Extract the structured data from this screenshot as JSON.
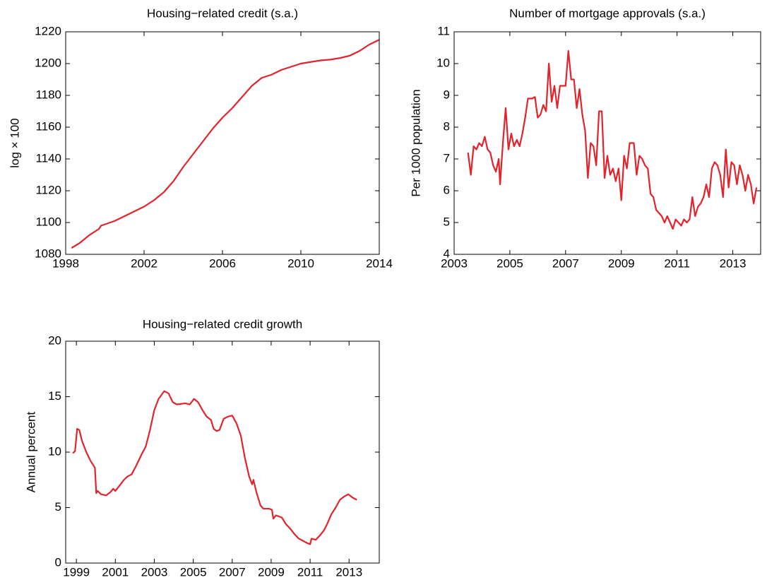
{
  "chart_data": [
    {
      "type": "line",
      "title": "Housing−related credit (s.a.)",
      "ylabel": "log × 100",
      "color": "#e3232c",
      "xlim": [
        1998,
        2014
      ],
      "xticks": [
        1998,
        2002,
        2006,
        2010,
        2014
      ],
      "ylim": [
        1080,
        1220
      ],
      "yticks": [
        1080,
        1100,
        1120,
        1140,
        1160,
        1180,
        1200,
        1220
      ],
      "x": [
        1998.3,
        1998.7,
        1999.2,
        1999.7,
        1999.8,
        2000.5,
        2001,
        2001.5,
        2002,
        2002.5,
        2003,
        2003.5,
        2004,
        2004.5,
        2005,
        2005.5,
        2006,
        2006.5,
        2007,
        2007.5,
        2008,
        2008.5,
        2009,
        2009.5,
        2010,
        2010.5,
        2011,
        2011.5,
        2012,
        2012.5,
        2013,
        2013.5,
        2014
      ],
      "values": [
        1084,
        1087,
        1092,
        1096,
        1098,
        1101,
        1104,
        1107,
        1110,
        1114,
        1119,
        1126,
        1135,
        1143,
        1151,
        1159,
        1166,
        1172,
        1179,
        1186,
        1191,
        1193,
        1196,
        1198,
        1200,
        1201,
        1202,
        1202.5,
        1203.5,
        1205,
        1208,
        1212,
        1215
      ]
    },
    {
      "type": "line",
      "title": "Number of mortgage approvals (s.a.)",
      "ylabel": "Per 1000 population",
      "color": "#e3232c",
      "xlim": [
        2003,
        2014
      ],
      "xticks": [
        2003,
        2005,
        2007,
        2009,
        2011,
        2013
      ],
      "ylim": [
        4,
        11
      ],
      "yticks": [
        4,
        5,
        6,
        7,
        8,
        9,
        10,
        11
      ],
      "x": [
        2003.5,
        2003.6,
        2003.7,
        2003.8,
        2003.9,
        2004.0,
        2004.1,
        2004.2,
        2004.3,
        2004.4,
        2004.5,
        2004.6,
        2004.65,
        2004.75,
        2004.85,
        2004.95,
        2005.05,
        2005.15,
        2005.25,
        2005.35,
        2005.45,
        2005.55,
        2005.65,
        2005.8,
        2005.9,
        2006.0,
        2006.1,
        2006.2,
        2006.3,
        2006.4,
        2006.5,
        2006.6,
        2006.7,
        2006.8,
        2006.9,
        2007.0,
        2007.1,
        2007.2,
        2007.3,
        2007.4,
        2007.5,
        2007.6,
        2007.7,
        2007.8,
        2007.9,
        2008.0,
        2008.1,
        2008.2,
        2008.3,
        2008.4,
        2008.5,
        2008.6,
        2008.7,
        2008.8,
        2008.9,
        2009.0,
        2009.1,
        2009.2,
        2009.3,
        2009.45,
        2009.55,
        2009.65,
        2009.75,
        2009.85,
        2009.95,
        2010.05,
        2010.15,
        2010.25,
        2010.35,
        2010.45,
        2010.55,
        2010.65,
        2010.75,
        2010.85,
        2010.95,
        2011.05,
        2011.15,
        2011.25,
        2011.35,
        2011.45,
        2011.55,
        2011.65,
        2011.75,
        2011.85,
        2011.95,
        2012.05,
        2012.15,
        2012.25,
        2012.35,
        2012.45,
        2012.55,
        2012.65,
        2012.75,
        2012.85,
        2012.95,
        2013.05,
        2013.15,
        2013.25,
        2013.35,
        2013.45,
        2013.55,
        2013.65,
        2013.75,
        2013.85
      ],
      "values": [
        7.2,
        6.5,
        7.4,
        7.3,
        7.5,
        7.4,
        7.7,
        7.3,
        7.2,
        6.8,
        6.6,
        7.0,
        6.2,
        7.5,
        8.6,
        7.3,
        7.8,
        7.4,
        7.6,
        7.4,
        7.8,
        8.3,
        8.9,
        8.9,
        8.95,
        8.3,
        8.4,
        8.7,
        8.5,
        10.0,
        8.8,
        9.3,
        8.6,
        9.3,
        9.3,
        9.3,
        10.4,
        9.5,
        9.5,
        8.6,
        9.2,
        8.4,
        7.9,
        6.4,
        7.5,
        7.4,
        6.8,
        8.5,
        8.5,
        6.4,
        7.1,
        6.5,
        6.7,
        6.3,
        6.7,
        5.7,
        7.1,
        6.7,
        7.5,
        7.5,
        6.5,
        7.1,
        7.0,
        6.8,
        6.7,
        5.9,
        5.8,
        5.4,
        5.3,
        5.2,
        5.0,
        5.2,
        5.0,
        4.8,
        5.1,
        5.0,
        4.9,
        5.1,
        5.0,
        5.1,
        5.8,
        5.2,
        5.5,
        5.6,
        5.8,
        6.2,
        5.8,
        6.7,
        6.9,
        6.8,
        6.5,
        5.8,
        7.3,
        6.1,
        6.9,
        6.8,
        6.2,
        6.8,
        6.5,
        6.0,
        6.5,
        6.2,
        5.6,
        6.1
      ]
    },
    {
      "type": "line",
      "title": "Housing−related credit growth",
      "ylabel": "Annual percent",
      "color": "#e3232c",
      "xlim": [
        1998.45,
        2014.55
      ],
      "xticks": [
        1999,
        2001,
        2003,
        2005,
        2007,
        2009,
        2011,
        2013
      ],
      "ylim": [
        0,
        20
      ],
      "yticks": [
        0,
        5,
        10,
        15,
        20
      ],
      "x": [
        1998.82,
        1998.93,
        1999.04,
        1999.15,
        1999.29,
        1999.51,
        1999.73,
        1999.95,
        2000.02,
        2000.09,
        2000.27,
        2000.53,
        2000.75,
        2000.89,
        2001.0,
        2001.18,
        2001.44,
        2001.62,
        2001.84,
        2002.05,
        2002.35,
        2002.56,
        2002.78,
        2003.0,
        2003.22,
        2003.51,
        2003.73,
        2003.95,
        2004.16,
        2004.6,
        2004.82,
        2005.04,
        2005.25,
        2005.47,
        2005.69,
        2005.91,
        2006.05,
        2006.2,
        2006.35,
        2006.56,
        2006.78,
        2007.0,
        2007.22,
        2007.44,
        2007.65,
        2007.87,
        2008.02,
        2008.09,
        2008.24,
        2008.45,
        2008.6,
        2008.89,
        2009.04,
        2009.11,
        2009.25,
        2009.55,
        2009.76,
        2009.98,
        2010.2,
        2010.42,
        2010.64,
        2010.85,
        2011.0,
        2011.07,
        2011.29,
        2011.51,
        2011.73,
        2011.87,
        2012.09,
        2012.31,
        2012.53,
        2012.75,
        2012.96,
        2013.18,
        2013.4
      ],
      "values": [
        9.9,
        10.1,
        12.1,
        12.0,
        11.0,
        10.0,
        9.2,
        8.6,
        6.3,
        6.5,
        6.2,
        6.1,
        6.4,
        6.7,
        6.5,
        6.9,
        7.5,
        7.8,
        8.0,
        8.7,
        9.8,
        10.5,
        12.0,
        13.8,
        14.8,
        15.5,
        15.3,
        14.5,
        14.3,
        14.4,
        14.3,
        14.8,
        14.5,
        13.8,
        13.2,
        12.9,
        12.1,
        11.9,
        12.0,
        13.0,
        13.2,
        13.3,
        12.6,
        11.5,
        9.5,
        7.8,
        7.1,
        7.5,
        6.4,
        5.2,
        4.9,
        4.9,
        4.8,
        4.0,
        4.3,
        4.1,
        3.5,
        3.1,
        2.6,
        2.2,
        2.0,
        1.8,
        1.7,
        2.2,
        2.1,
        2.5,
        3.0,
        3.5,
        4.4,
        5.0,
        5.7,
        6.0,
        6.2,
        5.9,
        5.7
      ]
    }
  ]
}
